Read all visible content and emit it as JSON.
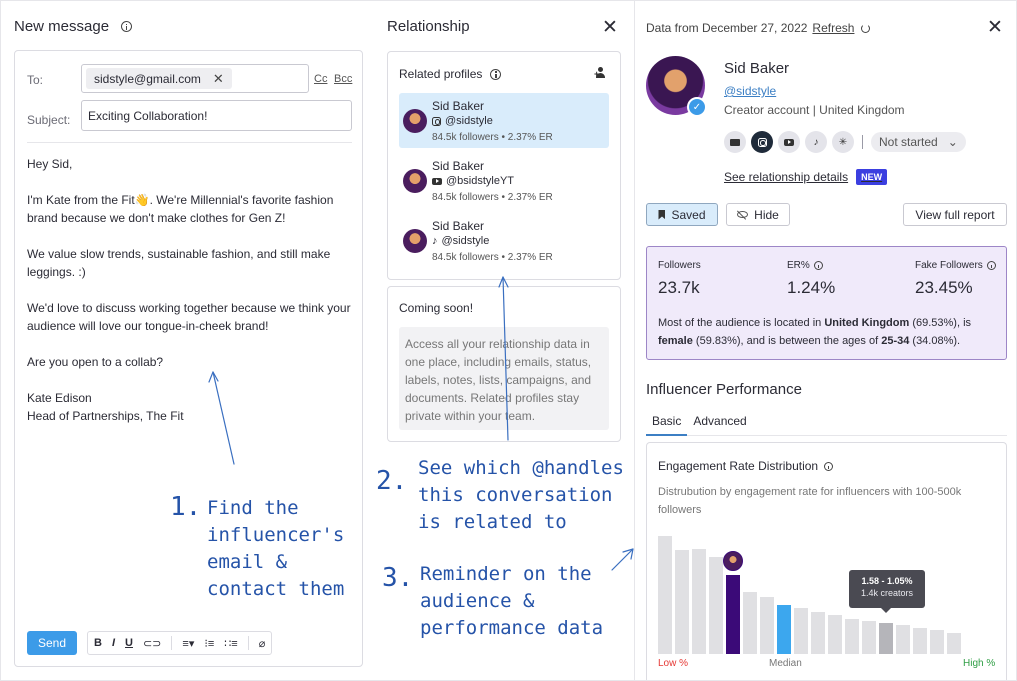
{
  "compose": {
    "title": "New message",
    "to_label": "To:",
    "to_chip": "sidstyle@gmail.com",
    "cc": "Cc",
    "bcc": "Bcc",
    "subject_label": "Subject:",
    "subject_value": "Exciting Collaboration!",
    "body": [
      "Hey Sid,",
      "I'm Kate from the Fit👋.  We're Millennial's favorite fashion brand because we don't make clothes for Gen Z!",
      "We value slow trends, sustainable fashion, and still make leggings. :)",
      "We'd love to discuss working together because we think your audience will love our tongue-in-cheek brand!",
      "Are you open to a collab?",
      "Kate Edison",
      "Head of Partnerships, The Fit"
    ],
    "send_label": "Send",
    "format_buttons": [
      "B",
      "I",
      "U"
    ]
  },
  "relationship": {
    "title": "Relationship",
    "related_title": "Related profiles",
    "profiles": [
      {
        "name": "Sid Baker",
        "handle": "@sidstyle",
        "platform": "instagram",
        "stats": "84.5k followers  •  2.37% ER"
      },
      {
        "name": "Sid Baker",
        "handle": "@bsidstyleYT",
        "platform": "youtube",
        "stats": "84.5k followers  •  2.37% ER"
      },
      {
        "name": "Sid Baker",
        "handle": "@sidstyle",
        "platform": "tiktok",
        "stats": "84.5k followers  •  2.37% ER"
      }
    ],
    "coming_title": "Coming soon!",
    "coming_text": "Access all your relationship data in one place, including emails, status, labels, notes, lists, campaigns, and documents. Related profiles stay private within your team."
  },
  "profile": {
    "data_from": "Data from December 27, 2022",
    "refresh": "Refresh",
    "name": "Sid Baker",
    "handle": "@sidstyle",
    "meta": "Creator account  |  United Kingdom",
    "status": "Not started",
    "see_rel": "See relationship details",
    "new_badge": "NEW",
    "saved": "Saved",
    "hide": "Hide",
    "report": "View full report",
    "stats": [
      {
        "label": "Followers",
        "value": "23.7k"
      },
      {
        "label": "ER%",
        "value": "1.24%"
      },
      {
        "label": "Fake Followers",
        "value": "23.45%"
      }
    ],
    "audience": {
      "t1": "Most of the audience is located in ",
      "b1": "United Kingdom",
      "t2": "  (69.53%), is ",
      "b2": "female",
      "t3": " (59.83%), and is between the ages of ",
      "b3": "25-34",
      "t4": " (34.08%)."
    },
    "perf_title": "Influencer Performance",
    "tabs": [
      "Basic",
      "Advanced"
    ]
  },
  "chart_data": {
    "type": "bar",
    "title": "Engagement Rate Distribution",
    "subtitle": "Distrubution by engagement rate for influencers with 100-500k followers",
    "values": [
      118,
      104,
      105,
      97,
      79,
      62,
      57,
      49,
      46,
      42,
      39,
      35,
      33,
      31,
      29,
      26,
      24,
      21
    ],
    "highlight_index": 4,
    "median_index": 7,
    "hover_index": 13,
    "tooltip": {
      "range": "1.58 - 1.05%",
      "count": "1.4k creators"
    },
    "x_labels": {
      "low": "Low %",
      "median": "Median",
      "high": "High %"
    },
    "colors": {
      "default": "#e0e0e3",
      "highlight": "#3b0a78",
      "median": "#3ca7ee",
      "hover": "#b5b5ba"
    }
  },
  "annotations": [
    {
      "num": "1.",
      "text": "Find the influencer's email & contact them"
    },
    {
      "num": "2.",
      "text": "See which @handles this conversation is related to"
    },
    {
      "num": "3.",
      "text": "Reminder on the audience & performance data"
    }
  ]
}
